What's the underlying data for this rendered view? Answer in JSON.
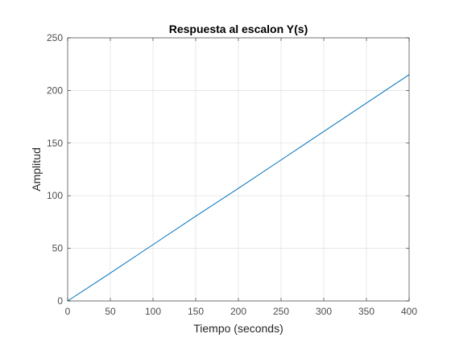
{
  "chart_data": {
    "type": "line",
    "title": "Respuesta al escalon Y(s)",
    "xlabel": "Tiempo (seconds)",
    "ylabel": "Amplitud",
    "xlim": [
      0,
      400
    ],
    "ylim": [
      0,
      250
    ],
    "x_ticks": [
      0,
      50,
      100,
      150,
      200,
      250,
      300,
      350,
      400
    ],
    "y_ticks": [
      0,
      50,
      100,
      150,
      200,
      250
    ],
    "grid": true,
    "legend": "none",
    "series": [
      {
        "color": "#0072bd",
        "x": [
          0,
          50,
          100,
          150,
          200,
          250,
          300,
          350,
          400
        ],
        "y": [
          0,
          26.5,
          53.5,
          80.5,
          107,
          134,
          161,
          188,
          215
        ]
      }
    ]
  }
}
